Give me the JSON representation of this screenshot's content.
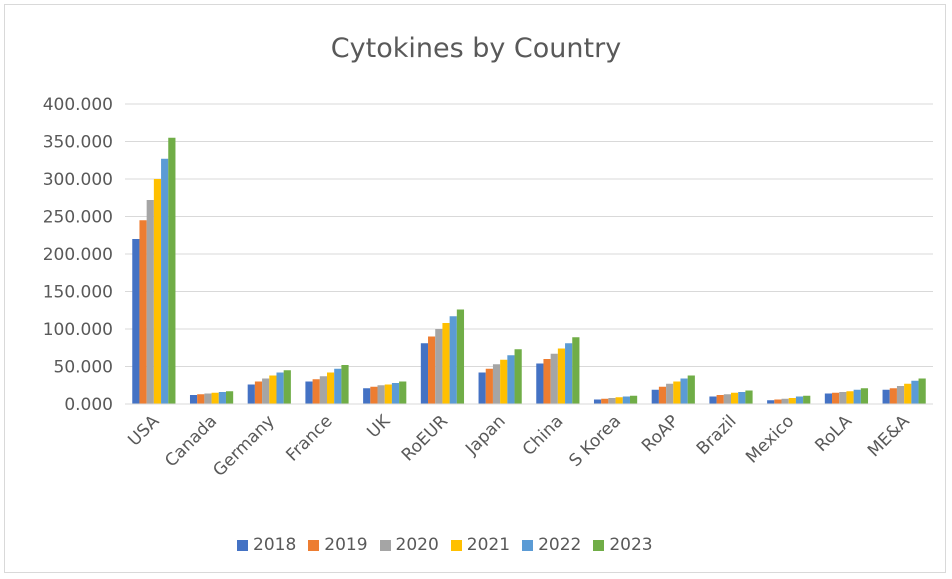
{
  "chart_data": {
    "type": "bar",
    "title": "Cytokines by Country",
    "xlabel": "",
    "ylabel": "",
    "ylim": [
      0,
      400
    ],
    "yticks": [
      "0.000",
      "50.000",
      "100.000",
      "150.000",
      "200.000",
      "250.000",
      "300.000",
      "350.000",
      "400.000"
    ],
    "categories": [
      "USA",
      "Canada",
      "Germany",
      "France",
      "UK",
      "RoEUR",
      "Japan",
      "China",
      "S Korea",
      "RoAP",
      "Brazil",
      "Mexico",
      "RoLA",
      "ME&A"
    ],
    "series": [
      {
        "name": "2018",
        "color": "#4472c4",
        "values": [
          220,
          12,
          26,
          30,
          21,
          81,
          42,
          54,
          6,
          19,
          10,
          5,
          14,
          19
        ]
      },
      {
        "name": "2019",
        "color": "#ed7d31",
        "values": [
          245,
          13,
          30,
          33,
          23,
          90,
          47,
          60,
          7,
          23,
          12,
          6,
          15,
          21
        ]
      },
      {
        "name": "2020",
        "color": "#a5a5a5",
        "values": [
          272,
          14,
          34,
          37,
          25,
          100,
          53,
          67,
          8,
          27,
          13,
          7,
          16,
          24
        ]
      },
      {
        "name": "2021",
        "color": "#ffc000",
        "values": [
          300,
          15,
          38,
          42,
          26,
          108,
          59,
          74,
          9,
          30,
          15,
          8,
          17,
          27
        ]
      },
      {
        "name": "2022",
        "color": "#5b9bd5",
        "values": [
          327,
          16,
          42,
          47,
          28,
          117,
          65,
          81,
          10,
          34,
          16,
          10,
          19,
          31
        ]
      },
      {
        "name": "2023",
        "color": "#70ad47",
        "values": [
          355,
          17,
          45,
          52,
          30,
          126,
          73,
          89,
          11,
          38,
          18,
          11,
          21,
          34
        ]
      }
    ],
    "grid": true,
    "legend_position": "bottom"
  }
}
